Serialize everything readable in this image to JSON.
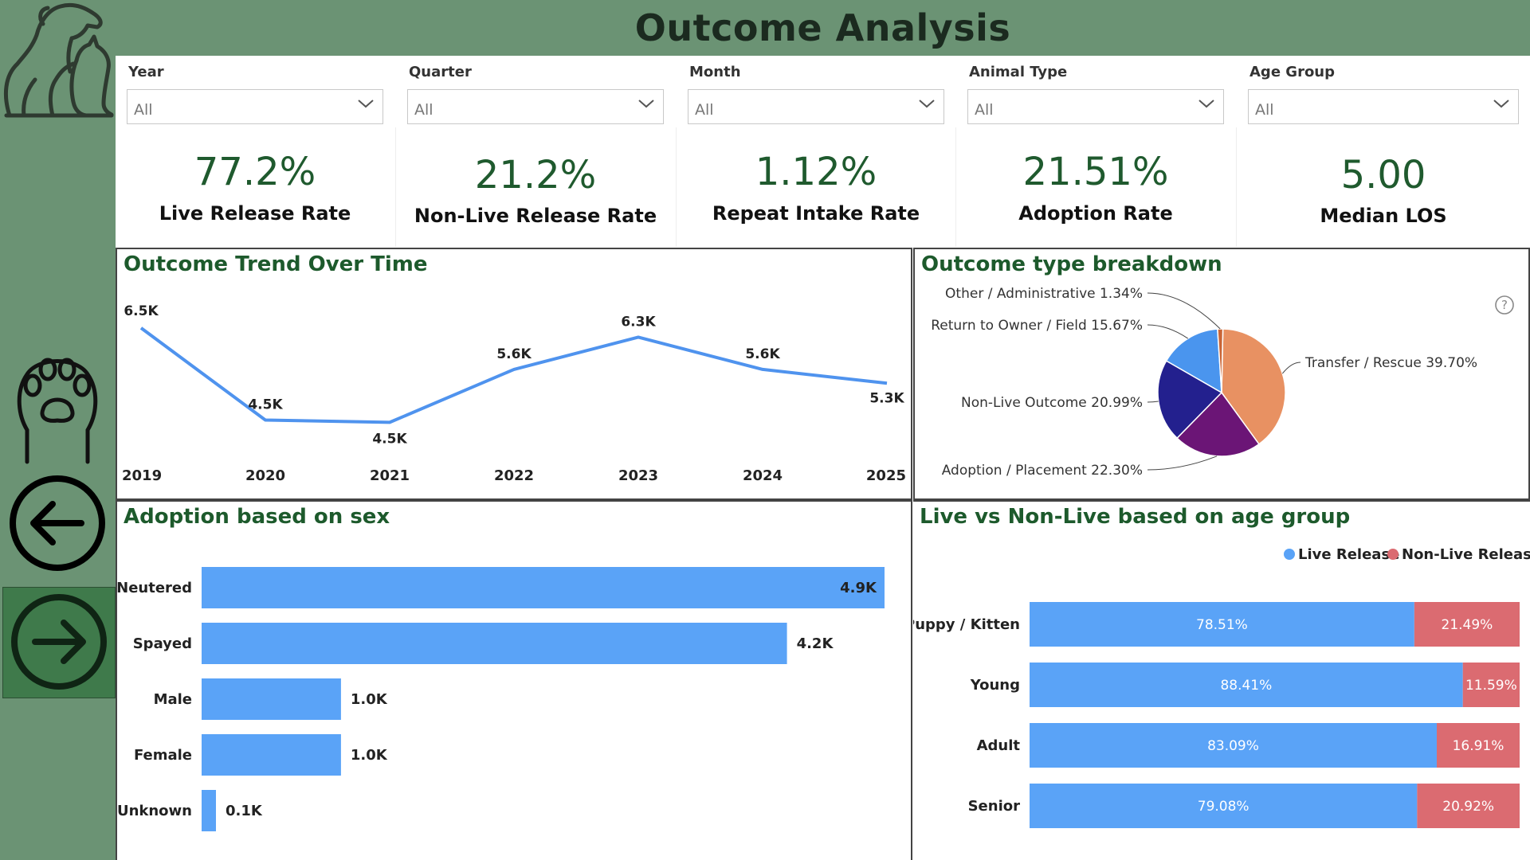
{
  "header": {
    "title": "Outcome Analysis"
  },
  "filters": [
    {
      "label": "Year",
      "value": "All"
    },
    {
      "label": "Quarter",
      "value": "All"
    },
    {
      "label": "Month",
      "value": "All"
    },
    {
      "label": "Animal Type",
      "value": "All"
    },
    {
      "label": "Age Group",
      "value": "All"
    }
  ],
  "kpis": [
    {
      "value": "77.2%",
      "label": "Live Release Rate"
    },
    {
      "value": "21.2%",
      "label": "Non-Live Release Rate"
    },
    {
      "value": "1.12%",
      "label": "Repeat Intake Rate"
    },
    {
      "value": "21.51%",
      "label": "Adoption Rate"
    },
    {
      "value": "5.00",
      "label": "Median LOS"
    }
  ],
  "colors": {
    "sidebar": "#6b9374",
    "title_green": "#1d5a2c",
    "bar_blue": "#5aa3f7",
    "line_blue": "#4f93ee",
    "nonlive_red": "#db6b71",
    "pie_transfer": "#e89162",
    "pie_adoption": "#6b1576",
    "pie_nonlive": "#23208e",
    "pie_return": "#4a95ee",
    "pie_other": "#c96536"
  },
  "icons": {
    "logo": "dog-cat-icon",
    "paw": "paw-icon",
    "back": "arrow-left-icon",
    "forward": "arrow-right-icon",
    "help": "help-icon"
  },
  "chart_data": [
    {
      "type": "line",
      "title": "Outcome Trend Over Time",
      "x": [
        "2019",
        "2020",
        "2021",
        "2022",
        "2023",
        "2024",
        "2025"
      ],
      "values": [
        6500,
        4500,
        4450,
        5600,
        6300,
        5600,
        5300
      ],
      "data_labels": [
        "6.5K",
        "4.5K",
        "4.5K",
        "5.6K",
        "6.3K",
        "5.6K",
        "5.3K"
      ],
      "ylim": [
        3000,
        7000
      ],
      "grid": false
    },
    {
      "type": "pie",
      "title": "Outcome type breakdown",
      "slices": [
        {
          "name": "Transfer / Rescue",
          "value": 39.7,
          "label": "Transfer / Rescue 39.70%"
        },
        {
          "name": "Adoption / Placement",
          "value": 22.3,
          "label": "Adoption / Placement 22.30%"
        },
        {
          "name": "Non-Live Outcome",
          "value": 20.99,
          "label": "Non-Live Outcome 20.99%"
        },
        {
          "name": "Return to Owner / Field",
          "value": 15.67,
          "label": "Return to Owner / Field 15.67%"
        },
        {
          "name": "Other / Administrative",
          "value": 1.34,
          "label": "Other / Administrative 1.34%"
        }
      ]
    },
    {
      "type": "bar",
      "orientation": "horizontal",
      "title": "Adoption based on sex",
      "categories": [
        "Neutered",
        "Spayed",
        "Male",
        "Female",
        "Unknown"
      ],
      "values": [
        4900,
        4200,
        1000,
        1000,
        100
      ],
      "data_labels": [
        "4.9K",
        "4.2K",
        "1.0K",
        "1.0K",
        "0.1K"
      ],
      "xlim": [
        0,
        4900
      ]
    },
    {
      "type": "bar",
      "orientation": "horizontal",
      "stacked": "100%",
      "title": "Live vs Non-Live based on age group",
      "legend": "top-right",
      "categories": [
        "Puppy / Kitten",
        "Young",
        "Adult",
        "Senior"
      ],
      "series": [
        {
          "name": "Live Release",
          "values": [
            78.51,
            88.41,
            83.09,
            79.08
          ],
          "labels": [
            "78.51%",
            "88.41%",
            "83.09%",
            "79.08%"
          ]
        },
        {
          "name": "Non-Live Release",
          "values": [
            21.49,
            11.59,
            16.91,
            20.92
          ],
          "labels": [
            "21.49%",
            "11.59%",
            "16.91%",
            "20.92%"
          ]
        }
      ]
    }
  ]
}
